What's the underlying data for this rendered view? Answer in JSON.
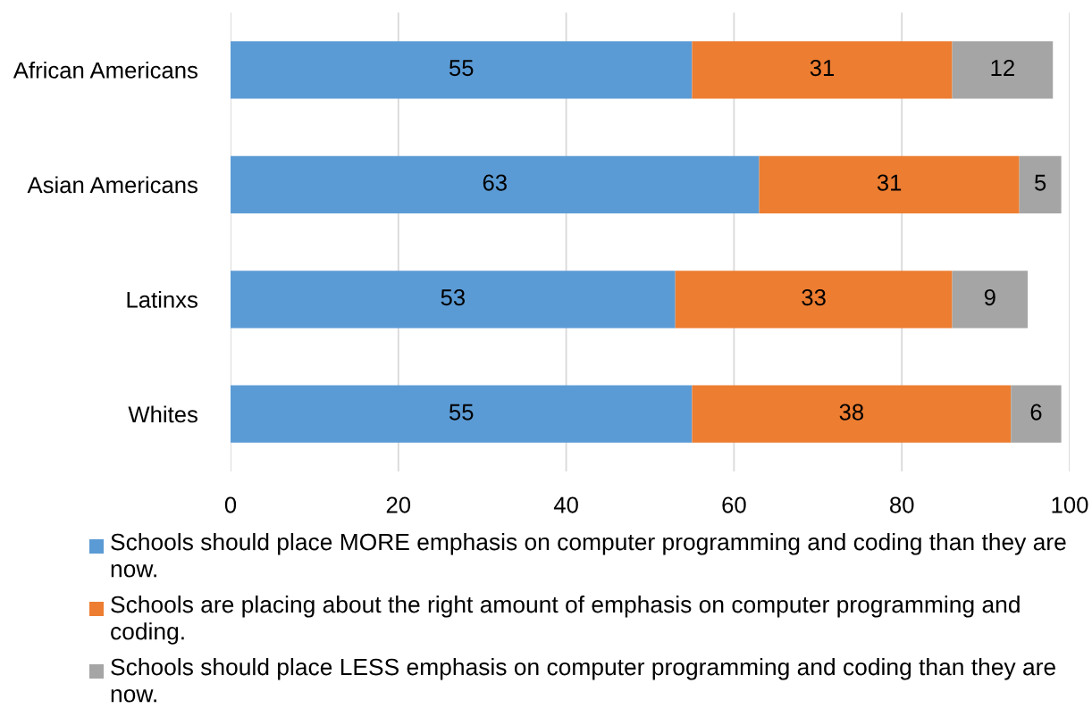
{
  "chart_data": {
    "type": "bar",
    "orientation": "horizontal",
    "stacked": true,
    "categories": [
      "African Americans",
      "Asian Americans",
      "Latinxs",
      "Whites"
    ],
    "series": [
      {
        "name": "Schools should place MORE emphasis on computer programming and coding than they are now.",
        "color": "#5b9bd5",
        "values": [
          55,
          63,
          53,
          55
        ]
      },
      {
        "name": "Schools are placing about the right amount of emphasis on computer programming and coding.",
        "color": "#ed7d31",
        "values": [
          31,
          31,
          33,
          38
        ]
      },
      {
        "name": "Schools should place LESS emphasis on computer programming and coding than they are now.",
        "color": "#a5a5a5",
        "values": [
          12,
          5,
          9,
          6
        ]
      }
    ],
    "xlim": [
      0,
      100
    ],
    "xticks": [
      0,
      20,
      40,
      60,
      80,
      100
    ],
    "grid": "x",
    "legend": "bottom",
    "data_labels": true
  }
}
